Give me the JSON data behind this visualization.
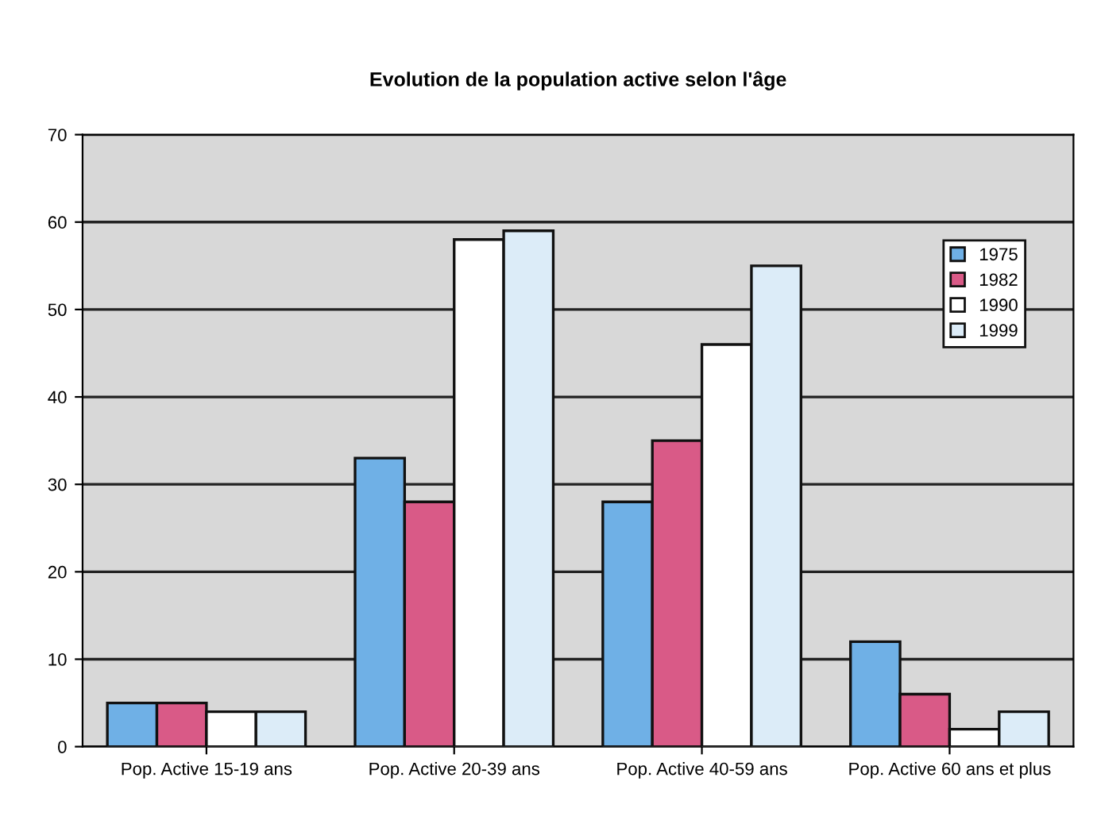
{
  "chart_data": {
    "type": "bar",
    "title": "Evolution de la population active selon l'âge",
    "categories": [
      "Pop. Active 15-19 ans",
      "Pop. Active 20-39 ans",
      "Pop. Active 40-59 ans",
      "Pop. Active 60 ans et plus"
    ],
    "series": [
      {
        "name": "1975",
        "color": "#6fb0e6",
        "values": [
          5,
          33,
          28,
          12
        ]
      },
      {
        "name": "1982",
        "color": "#d95a87",
        "values": [
          5,
          28,
          35,
          6
        ]
      },
      {
        "name": "1990",
        "color": "#ffffff",
        "values": [
          4,
          58,
          46,
          2
        ]
      },
      {
        "name": "1999",
        "color": "#dcecf8",
        "values": [
          4,
          59,
          55,
          4
        ]
      }
    ],
    "ylim": [
      0,
      70
    ],
    "yticks": [
      0,
      10,
      20,
      30,
      40,
      50,
      60,
      70
    ],
    "grid": "y",
    "legend": "right"
  }
}
